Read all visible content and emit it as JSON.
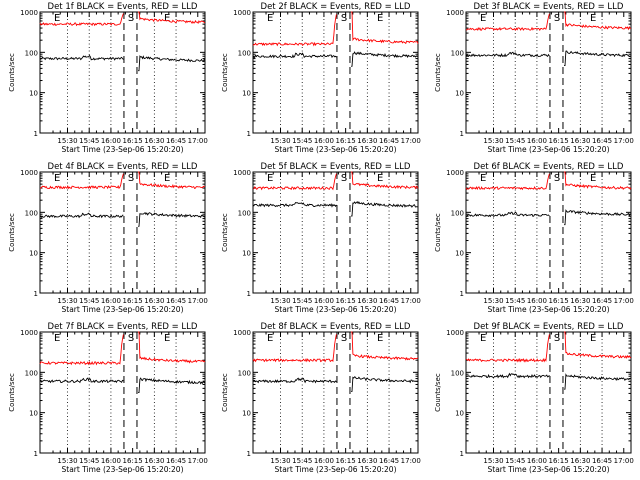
{
  "chart_data": [
    {
      "type": "line",
      "title": "Det 1f BLACK = Events, RED = LLD",
      "xlabel": "Start Time (23-Sep-06 15:20:20)",
      "ylabel": "Counts/sec",
      "yscale": "log",
      "ylim": [
        1,
        1000
      ],
      "yticks": [
        "1",
        "10",
        "100",
        "1000"
      ],
      "xticks": [
        "15:30",
        "15:45",
        "16:00",
        "16:15",
        "16:30",
        "16:45",
        "17:00"
      ],
      "xlim_min": [
        -9,
        105
      ],
      "markers": {
        "dotted": [
          10,
          25,
          40,
          70,
          85
        ],
        "dashed": [
          49,
          58
        ],
        "labels": [
          {
            "text": "E",
            "at": 0
          },
          {
            "text": "S",
            "at": 51
          },
          {
            "text": "E",
            "at": 76
          }
        ]
      },
      "gap": [
        49,
        58
      ],
      "series": [
        {
          "name": "Events",
          "color": "#000000",
          "before": 70,
          "after": 78,
          "spike": null
        },
        {
          "name": "LLD",
          "color": "#ff0000",
          "before": 500,
          "after": 700,
          "spike": 1000
        }
      ]
    },
    {
      "type": "line",
      "title": "Det 2f BLACK = Events, RED = LLD",
      "xlabel": "Start Time (23-Sep-06 15:20:20)",
      "ylabel": "Counts/sec",
      "yscale": "log",
      "ylim": [
        1,
        1000
      ],
      "yticks": [
        "1",
        "10",
        "100",
        "1000"
      ],
      "xticks": [
        "15:30",
        "15:45",
        "16:00",
        "16:15",
        "16:30",
        "16:45",
        "17:00"
      ],
      "xlim_min": [
        -9,
        105
      ],
      "markers": {
        "dotted": [
          10,
          25,
          40,
          70,
          85
        ],
        "dashed": [
          49,
          58
        ],
        "labels": [
          {
            "text": "E",
            "at": 0
          },
          {
            "text": "S",
            "at": 51
          },
          {
            "text": "E",
            "at": 76
          }
        ]
      },
      "gap": [
        49,
        58
      ],
      "series": [
        {
          "name": "Events",
          "color": "#000000",
          "before": 80,
          "after": 100,
          "spike": null
        },
        {
          "name": "LLD",
          "color": "#ff0000",
          "before": 160,
          "after": 220,
          "spike": 1000
        }
      ]
    },
    {
      "type": "line",
      "title": "Det 3f BLACK = Events, RED = LLD",
      "xlabel": "Start Time (23-Sep-06 15:20:20)",
      "ylabel": "Counts/sec",
      "yscale": "log",
      "ylim": [
        1,
        1000
      ],
      "yticks": [
        "1",
        "10",
        "100",
        "1000"
      ],
      "xticks": [
        "15:30",
        "15:45",
        "16:00",
        "16:15",
        "16:30",
        "16:45",
        "17:00"
      ],
      "xlim_min": [
        -9,
        105
      ],
      "markers": {
        "dotted": [
          10,
          25,
          40,
          70,
          85
        ],
        "dashed": [
          49,
          58
        ],
        "labels": [
          {
            "text": "E",
            "at": 0
          },
          {
            "text": "S",
            "at": 51
          },
          {
            "text": "E",
            "at": 76
          }
        ]
      },
      "gap": [
        49,
        58
      ],
      "series": [
        {
          "name": "Events",
          "color": "#000000",
          "before": 85,
          "after": 105,
          "spike": null
        },
        {
          "name": "LLD",
          "color": "#ff0000",
          "before": 380,
          "after": 500,
          "spike": 1000
        }
      ]
    },
    {
      "type": "line",
      "title": "Det 4f BLACK = Events, RED = LLD",
      "xlabel": "Start Time (23-Sep-06 15:20:20)",
      "ylabel": "Counts/sec",
      "yscale": "log",
      "ylim": [
        1,
        1000
      ],
      "yticks": [
        "1",
        "10",
        "100",
        "1000"
      ],
      "xticks": [
        "15:30",
        "15:45",
        "16:00",
        "16:15",
        "16:30",
        "16:45",
        "17:00"
      ],
      "xlim_min": [
        -9,
        105
      ],
      "markers": {
        "dotted": [
          10,
          25,
          40,
          70,
          85
        ],
        "dashed": [
          49,
          58
        ],
        "labels": [
          {
            "text": "E",
            "at": 0
          },
          {
            "text": "S",
            "at": 51
          },
          {
            "text": "E",
            "at": 76
          }
        ]
      },
      "gap": [
        49,
        58
      ],
      "series": [
        {
          "name": "Events",
          "color": "#000000",
          "before": 80,
          "after": 100,
          "spike": null
        },
        {
          "name": "LLD",
          "color": "#ff0000",
          "before": 420,
          "after": 520,
          "spike": 1000
        }
      ]
    },
    {
      "type": "line",
      "title": "Det 5f BLACK = Events, RED = LLD",
      "xlabel": "Start Time (23-Sep-06 15:20:20)",
      "ylabel": "Counts/sec",
      "yscale": "log",
      "ylim": [
        1,
        1000
      ],
      "yticks": [
        "1",
        "10",
        "100",
        "1000"
      ],
      "xticks": [
        "15:30",
        "15:45",
        "16:00",
        "16:15",
        "16:30",
        "16:45",
        "17:00"
      ],
      "xlim_min": [
        -9,
        105
      ],
      "markers": {
        "dotted": [
          10,
          25,
          40,
          70,
          85
        ],
        "dashed": [
          49,
          58
        ],
        "labels": [
          {
            "text": "E",
            "at": 0
          },
          {
            "text": "S",
            "at": 51
          },
          {
            "text": "E",
            "at": 76
          }
        ]
      },
      "gap": [
        49,
        58
      ],
      "series": [
        {
          "name": "Events",
          "color": "#000000",
          "before": 150,
          "after": 180,
          "spike": null
        },
        {
          "name": "LLD",
          "color": "#ff0000",
          "before": 400,
          "after": 520,
          "spike": 1000
        }
      ]
    },
    {
      "type": "line",
      "title": "Det 6f BLACK = Events, RED = LLD",
      "xlabel": "Start Time (23-Sep-06 15:20:20)",
      "ylabel": "Counts/sec",
      "yscale": "log",
      "ylim": [
        1,
        1000
      ],
      "yticks": [
        "1",
        "10",
        "100",
        "1000"
      ],
      "xticks": [
        "15:30",
        "15:45",
        "16:00",
        "16:15",
        "16:30",
        "16:45",
        "17:00"
      ],
      "xlim_min": [
        -9,
        105
      ],
      "markers": {
        "dotted": [
          10,
          25,
          40,
          70,
          85
        ],
        "dashed": [
          49,
          58
        ],
        "labels": [
          {
            "text": "E",
            "at": 0
          },
          {
            "text": "S",
            "at": 51
          },
          {
            "text": "E",
            "at": 76
          }
        ]
      },
      "gap": [
        49,
        58
      ],
      "series": [
        {
          "name": "Events",
          "color": "#000000",
          "before": 85,
          "after": 110,
          "spike": null
        },
        {
          "name": "LLD",
          "color": "#ff0000",
          "before": 400,
          "after": 500,
          "spike": 1000
        }
      ]
    },
    {
      "type": "line",
      "title": "Det 7f BLACK = Events, RED = LLD",
      "xlabel": "Start Time (23-Sep-06 15:20:20)",
      "ylabel": "Counts/sec",
      "yscale": "log",
      "ylim": [
        1,
        1000
      ],
      "yticks": [
        "1",
        "10",
        "100",
        "1000"
      ],
      "xticks": [
        "15:30",
        "15:45",
        "16:00",
        "16:15",
        "16:30",
        "16:45",
        "17:00"
      ],
      "xlim_min": [
        -9,
        105
      ],
      "markers": {
        "dotted": [
          10,
          25,
          40,
          70,
          85
        ],
        "dashed": [
          49,
          58
        ],
        "labels": [
          {
            "text": "E",
            "at": 0
          },
          {
            "text": "S",
            "at": 51
          },
          {
            "text": "E",
            "at": 76
          }
        ]
      },
      "gap": [
        49,
        58
      ],
      "series": [
        {
          "name": "Events",
          "color": "#000000",
          "before": 60,
          "after": 70,
          "spike": null
        },
        {
          "name": "LLD",
          "color": "#ff0000",
          "before": 170,
          "after": 230,
          "spike": 1000
        }
      ]
    },
    {
      "type": "line",
      "title": "Det 8f BLACK = Events, RED = LLD",
      "xlabel": "Start Time (23-Sep-06 15:20:20)",
      "ylabel": "Counts/sec",
      "yscale": "log",
      "ylim": [
        1,
        1000
      ],
      "yticks": [
        "1",
        "10",
        "100",
        "1000"
      ],
      "xticks": [
        "15:30",
        "15:45",
        "16:00",
        "16:15",
        "16:30",
        "16:45",
        "17:00"
      ],
      "xlim_min": [
        -9,
        105
      ],
      "markers": {
        "dotted": [
          10,
          25,
          40,
          70,
          85
        ],
        "dashed": [
          49,
          58
        ],
        "labels": [
          {
            "text": "E",
            "at": 0
          },
          {
            "text": "S",
            "at": 51
          },
          {
            "text": "E",
            "at": 76
          }
        ]
      },
      "gap": [
        49,
        58
      ],
      "series": [
        {
          "name": "Events",
          "color": "#000000",
          "before": 60,
          "after": 75,
          "spike": null
        },
        {
          "name": "LLD",
          "color": "#ff0000",
          "before": 200,
          "after": 270,
          "spike": 1000
        }
      ]
    },
    {
      "type": "line",
      "title": "Det 9f BLACK = Events, RED = LLD",
      "xlabel": "Start Time (23-Sep-06 15:20:20)",
      "ylabel": "Counts/sec",
      "yscale": "log",
      "ylim": [
        1,
        1000
      ],
      "yticks": [
        "1",
        "10",
        "100",
        "1000"
      ],
      "xticks": [
        "15:30",
        "15:45",
        "16:00",
        "16:15",
        "16:30",
        "16:45",
        "17:00"
      ],
      "xlim_min": [
        -9,
        105
      ],
      "markers": {
        "dotted": [
          10,
          25,
          40,
          70,
          85
        ],
        "dashed": [
          49,
          58
        ],
        "labels": [
          {
            "text": "E",
            "at": 0
          },
          {
            "text": "S",
            "at": 51
          },
          {
            "text": "E",
            "at": 76
          }
        ]
      },
      "gap": [
        49,
        58
      ],
      "series": [
        {
          "name": "Events",
          "color": "#000000",
          "before": 80,
          "after": 85,
          "spike": null
        },
        {
          "name": "LLD",
          "color": "#ff0000",
          "before": 200,
          "after": 300,
          "spike": 1000
        }
      ]
    }
  ]
}
